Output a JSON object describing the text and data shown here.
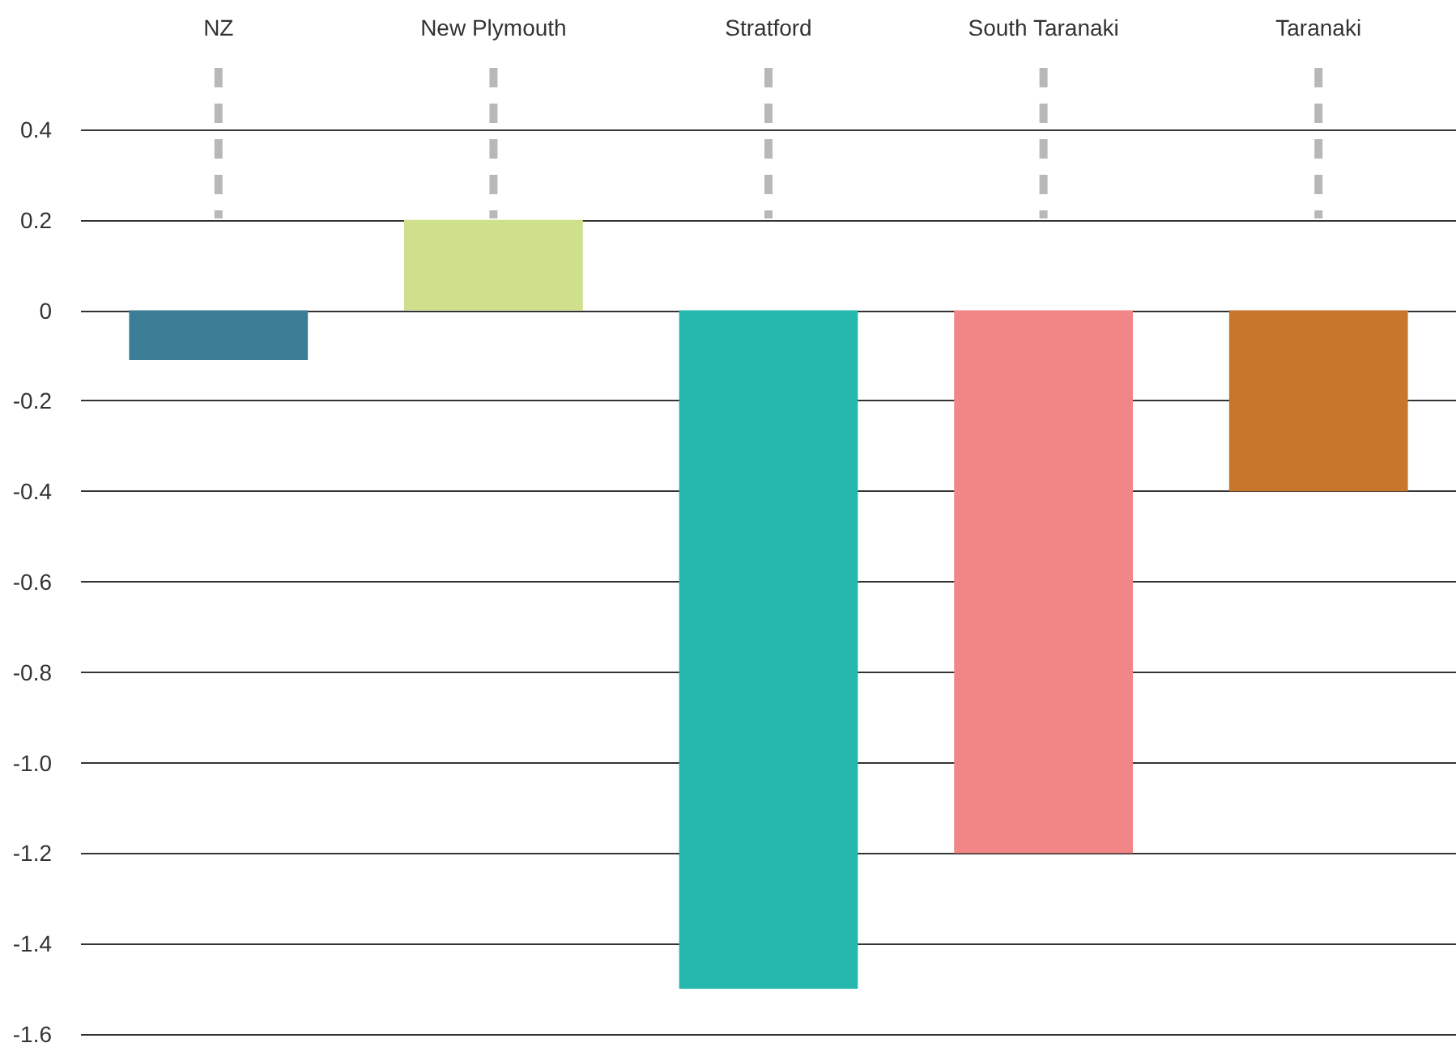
{
  "chart_data": {
    "type": "bar",
    "categories": [
      "NZ",
      "New Plymouth",
      "Stratford",
      "South Taranaki",
      "Taranaki"
    ],
    "values": [
      -0.11,
      0.2,
      -1.5,
      -1.2,
      -0.4
    ],
    "colors": [
      "#3c7d96",
      "#cfe08c",
      "#26b8ad",
      "#f28686",
      "#c8762c"
    ],
    "ylim": [
      -1.6,
      0.4
    ],
    "yticks": [
      0.4,
      0.2,
      0,
      {
        "value": -0.2,
        "label": "-0.2"
      },
      {
        "value": -0.4,
        "label": "-0.4"
      },
      {
        "value": -0.6,
        "label": "-0.6"
      },
      {
        "value": -0.8,
        "label": "-0.8"
      },
      {
        "value": -1.0,
        "label": "-1.0"
      },
      {
        "value": -1.2,
        "label": "-1.2"
      },
      {
        "value": -1.4,
        "label": "-1.4"
      },
      {
        "value": -1.6,
        "label": "-1.6"
      }
    ],
    "grid": "y"
  }
}
